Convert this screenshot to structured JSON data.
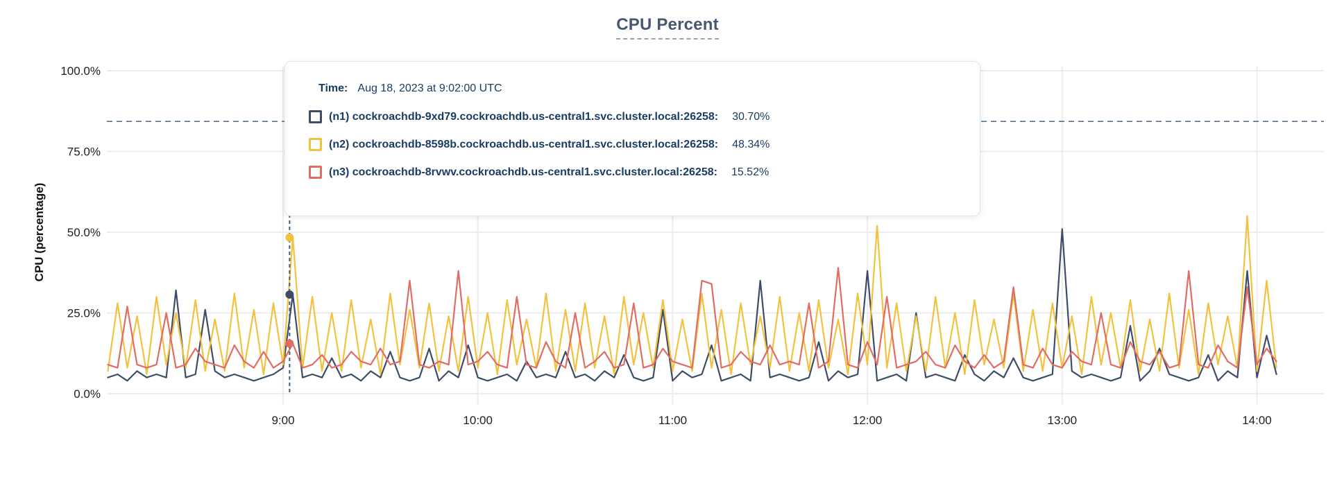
{
  "title": "CPU Percent",
  "tooltip": {
    "time_label": "Time:",
    "time_value": "Aug 18, 2023 at 9:02:00 UTC",
    "rows": [
      {
        "id": "n1",
        "label": "(n1) cockroachdb-9xd79.cockroachdb.us-central1.svc.cluster.local:26258:",
        "value": "30.70%",
        "color": "#3E4C68"
      },
      {
        "id": "n2",
        "label": "(n2) cockroachdb-8598b.cockroachdb.us-central1.svc.cluster.local:26258:",
        "value": "48.34%",
        "color": "#F2C13D"
      },
      {
        "id": "n3",
        "label": "(n3) cockroachdb-8rvwv.cockroachdb.us-central1.svc.cluster.local:26258:",
        "value": "15.52%",
        "color": "#E06C65"
      }
    ]
  },
  "colors": {
    "title": "#475872",
    "grid": "#ececec",
    "tick_text": "#1e1e1e",
    "axis_label": "#111111",
    "dashed_rule": "#54728c",
    "crosshair": "#3f6077",
    "tooltip_text": "#1a3c62"
  },
  "chart_data": {
    "type": "line",
    "title": "CPU Percent",
    "xlabel": "",
    "ylabel": "CPU (percentage)",
    "ylim": [
      0,
      100
    ],
    "grid": true,
    "legend_position": "tooltip",
    "y_ticks": [
      {
        "pct": 0,
        "label": "0.0%"
      },
      {
        "pct": 25,
        "label": "25.0%"
      },
      {
        "pct": 50,
        "label": "50.0%"
      },
      {
        "pct": 75,
        "label": "75.0%"
      },
      {
        "pct": 100,
        "label": "100.0%"
      }
    ],
    "x_ticks": [
      {
        "minute": 540,
        "label": "9:00"
      },
      {
        "minute": 600,
        "label": "10:00"
      },
      {
        "minute": 660,
        "label": "11:00"
      },
      {
        "minute": 720,
        "label": "12:00"
      },
      {
        "minute": 780,
        "label": "13:00"
      },
      {
        "minute": 840,
        "label": "14:00"
      }
    ],
    "threshold_dashed_pct": 84.3,
    "hover": {
      "time_minute": 542,
      "time_text": "Aug 18, 2023 at 9:02:00 UTC",
      "points": [
        {
          "series": "n1",
          "pct": 30.7
        },
        {
          "series": "n2",
          "pct": 48.34
        },
        {
          "series": "n3",
          "pct": 15.52
        }
      ]
    },
    "t_start_minute": 486,
    "t_step_minutes": 3,
    "series": [
      {
        "id": "n1",
        "name": "(n1) cockroachdb-9xd79.cockroachdb.us-central1.svc.cluster.local:26258",
        "color": "#3E4C68",
        "values": [
          5,
          6,
          4,
          7,
          5,
          6,
          5,
          32,
          5,
          6,
          26,
          7,
          5,
          6,
          5,
          4,
          5,
          6,
          8,
          30.7,
          5,
          6,
          5,
          11,
          5,
          6,
          4,
          7,
          5,
          13,
          5,
          4,
          5,
          14,
          4,
          7,
          5,
          15,
          5,
          4,
          5,
          6,
          4,
          10,
          5,
          6,
          5,
          13,
          5,
          6,
          4,
          7,
          5,
          12,
          5,
          4,
          5,
          26,
          4,
          7,
          5,
          6,
          15,
          4,
          5,
          6,
          4,
          35,
          5,
          6,
          5,
          4,
          5,
          16,
          4,
          7,
          5,
          6,
          38,
          4,
          5,
          6,
          4,
          25,
          5,
          6,
          5,
          4,
          12,
          6,
          4,
          7,
          5,
          11,
          5,
          4,
          5,
          6,
          51,
          7,
          5,
          6,
          5,
          4,
          5,
          21,
          4,
          7,
          14,
          6,
          5,
          4,
          5,
          12,
          4,
          7,
          5,
          38,
          5,
          18,
          6
        ]
      },
      {
        "id": "n2",
        "name": "(n2) cockroachdb-8598b.cockroachdb.us-central1.svc.cluster.local:26258",
        "color": "#F2C13D",
        "values": [
          7,
          28,
          8,
          24,
          6,
          30,
          9,
          25,
          8,
          29,
          7,
          23,
          7,
          31,
          8,
          26,
          6,
          28,
          9,
          48.34,
          8,
          30,
          7,
          25,
          7,
          29,
          8,
          23,
          6,
          31,
          9,
          26,
          8,
          28,
          7,
          24,
          7,
          30,
          8,
          25,
          6,
          29,
          9,
          23,
          8,
          31,
          7,
          26,
          7,
          28,
          8,
          24,
          6,
          30,
          9,
          25,
          8,
          29,
          7,
          23,
          7,
          31,
          8,
          26,
          6,
          28,
          9,
          24,
          8,
          30,
          7,
          25,
          7,
          29,
          8,
          23,
          6,
          31,
          9,
          52,
          8,
          28,
          7,
          24,
          7,
          30,
          8,
          25,
          6,
          29,
          9,
          23,
          8,
          31,
          7,
          26,
          7,
          28,
          8,
          24,
          6,
          30,
          9,
          25,
          8,
          29,
          7,
          23,
          7,
          31,
          8,
          26,
          6,
          28,
          9,
          24,
          8,
          55,
          7,
          35,
          8
        ]
      },
      {
        "id": "n3",
        "name": "(n3) cockroachdb-8rvwv.cockroachdb.us-central1.svc.cluster.local:26258",
        "color": "#E06C65",
        "values": [
          9,
          8,
          27,
          9,
          8,
          9,
          25,
          8,
          9,
          14,
          10,
          9,
          8,
          15,
          10,
          8,
          13,
          8,
          10,
          15.52,
          8,
          9,
          12,
          8,
          9,
          13,
          10,
          9,
          14,
          9,
          10,
          35,
          9,
          8,
          10,
          9,
          38,
          9,
          10,
          13,
          9,
          8,
          30,
          9,
          8,
          16,
          10,
          8,
          25,
          8,
          10,
          13,
          8,
          9,
          28,
          8,
          9,
          14,
          10,
          9,
          8,
          35,
          34,
          8,
          9,
          13,
          10,
          9,
          15,
          9,
          10,
          9,
          28,
          8,
          10,
          39,
          9,
          8,
          16,
          9,
          30,
          8,
          9,
          10,
          13,
          9,
          8,
          15,
          10,
          8,
          12,
          8,
          10,
          33,
          9,
          8,
          14,
          9,
          8,
          13,
          10,
          9,
          25,
          9,
          8,
          16,
          10,
          9,
          13,
          8,
          9,
          38,
          9,
          8,
          15,
          10,
          8,
          33,
          9,
          14,
          10
        ]
      }
    ]
  }
}
